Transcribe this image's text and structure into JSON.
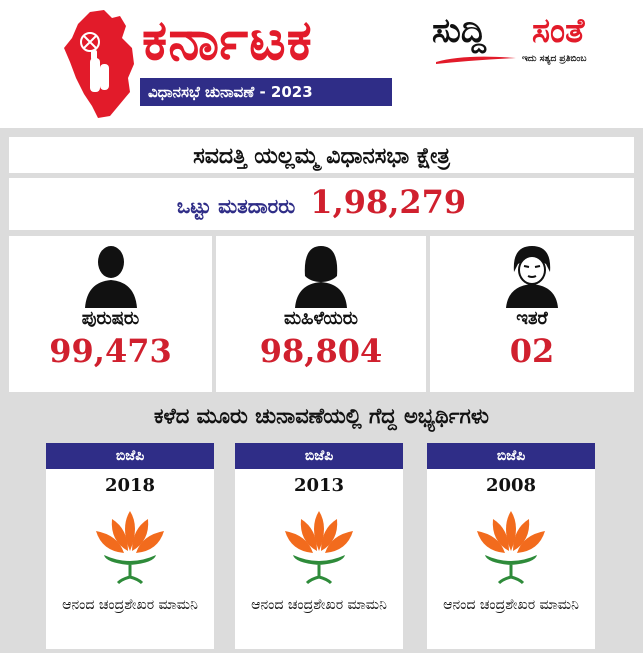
{
  "header": {
    "state_title": "ಕರ್ನಾಟಕ",
    "subtitle": "ವಿಧಾನಸಭೆ ಚುನಾವಣೆ - 2023",
    "brand_word1": "ಸುದ್ದಿ",
    "brand_word2": "ಸಂತೆ",
    "brand_tagline": "ಇದು ಸತ್ಯದ ಪ್ರತಿಬಿಂಬ"
  },
  "constituency": {
    "name": "ಸವದತ್ತಿ ಯಲ್ಲಮ್ಮ ವಿಧಾನಸಭಾ ಕ್ಷೇತ್ರ",
    "total_label": "ಒಟ್ಟು ಮತದಾರರು",
    "total_value": "1,98,279"
  },
  "voters": [
    {
      "label": "ಪುರುಷರು",
      "value": "99,473",
      "icon": "male-person-icon"
    },
    {
      "label": "ಮಹಿಳೆಯರು",
      "value": "98,804",
      "icon": "female-person-icon"
    },
    {
      "label": "ಇತರೆ",
      "value": "02",
      "icon": "other-person-icon"
    }
  ],
  "history": {
    "title": "ಕಳೆದ ಮೂರು ಚುನಾವಣೆಯಲ್ಲಿ ಗೆದ್ದ ಅಭ್ಯರ್ಥಿಗಳು",
    "cards": [
      {
        "party": "ಬಿಜೆಪಿ",
        "year": "2018",
        "name": "ಆನಂದ ಚಂದ್ರಶೇಖರ ಮಾಮನಿ",
        "icon": "lotus-icon"
      },
      {
        "party": "ಬಿಜೆಪಿ",
        "year": "2013",
        "name": "ಆನಂದ ಚಂದ್ರಶೇಖರ ಮಾಮನಿ",
        "icon": "lotus-icon"
      },
      {
        "party": "ಬಿಜೆಪಿ",
        "year": "2008",
        "name": "ಆನಂದ ಚಂದ್ರಶೇಖರ ಮಾಮನಿ",
        "icon": "lotus-icon"
      }
    ]
  },
  "colors": {
    "accent_red": "#e21b2a",
    "value_red": "#d0202e",
    "navy": "#2f2d87",
    "lotus_orange": "#f26b1d",
    "lotus_green": "#2e8b3a",
    "background": "#dcdcdc"
  }
}
